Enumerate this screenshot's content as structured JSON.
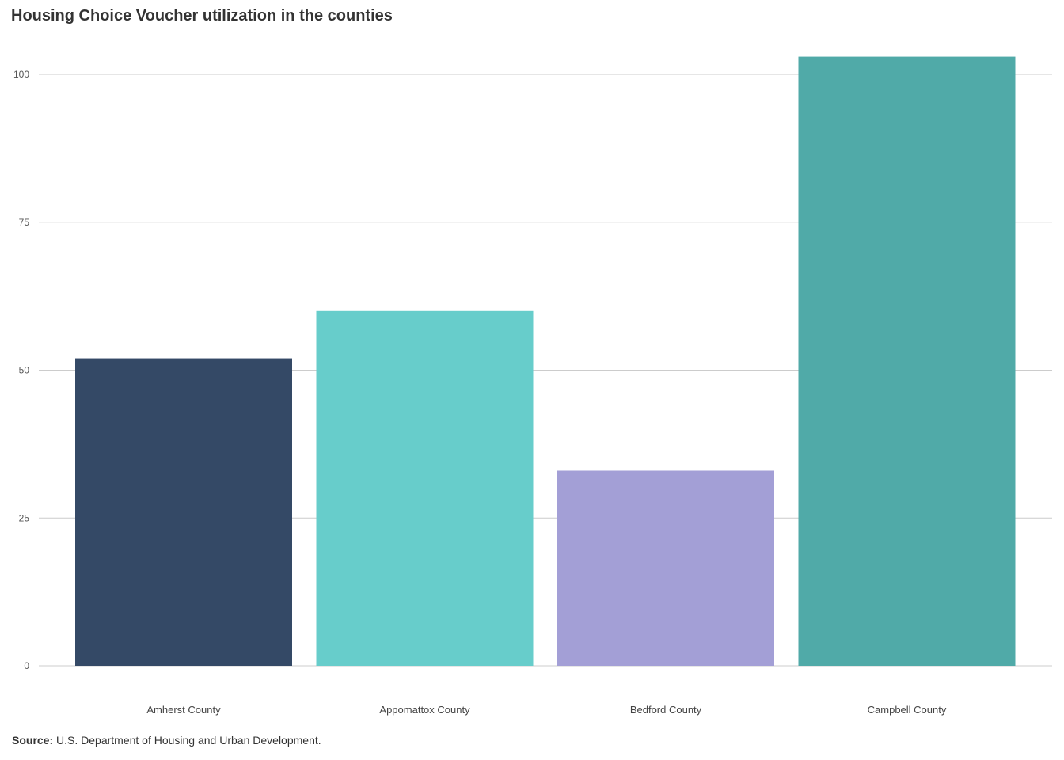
{
  "chart_data": {
    "type": "bar",
    "title": "Housing Choice Voucher utilization in the counties",
    "categories": [
      "Amherst County",
      "Appomattox County",
      "Bedford County",
      "Campbell County"
    ],
    "values": [
      52,
      60,
      33,
      103
    ],
    "colors": [
      "#344966",
      "#67cdcb",
      "#a39fd6",
      "#50aaa8"
    ],
    "y_ticks": [
      0,
      25,
      50,
      75,
      100
    ],
    "ylim": [
      0,
      103
    ],
    "xlabel": "",
    "ylabel": "",
    "grid": true,
    "legend": "none"
  },
  "source": {
    "label": "Source:",
    "text": "U.S. Department of Housing and Urban Development."
  }
}
